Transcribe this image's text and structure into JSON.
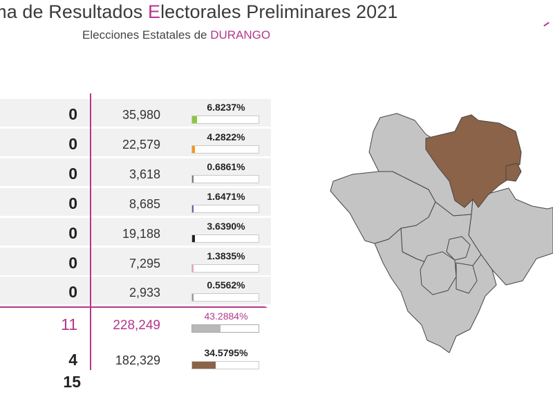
{
  "header": {
    "title_prefix": "ama de Resultados ",
    "title_accent": "E",
    "title_suffix": "lectorales Preliminares 2021",
    "subtitle_prefix": "Elecciones Estatales de ",
    "subtitle_state": "DURANGO"
  },
  "results": [
    {
      "seats": "0",
      "votes": "35,980",
      "pct": "6.8237%",
      "fill": 0.068,
      "color": "#8dc63f"
    },
    {
      "seats": "0",
      "votes": "22,579",
      "pct": "4.2822%",
      "fill": 0.043,
      "color": "#f7941d"
    },
    {
      "seats": "0",
      "votes": "3,618",
      "pct": "0.6861%",
      "fill": 0.007,
      "color": "#7a7a7a"
    },
    {
      "seats": "0",
      "votes": "8,685",
      "pct": "1.6471%",
      "fill": 0.016,
      "color": "#6b5ea8"
    },
    {
      "seats": "0",
      "votes": "19,188",
      "pct": "3.6390%",
      "fill": 0.036,
      "color": "#222222"
    },
    {
      "seats": "0",
      "votes": "7,295",
      "pct": "1.3835%",
      "fill": 0.014,
      "color": "#e8a0c4"
    },
    {
      "seats": "0",
      "votes": "2,933",
      "pct": "0.5562%",
      "fill": 0.006,
      "color": "#999999"
    },
    {
      "seats": "11",
      "votes": "228,249",
      "pct": "43.2884%",
      "fill": 0.433,
      "color": "#b8b8b8",
      "highlight": true
    },
    {
      "seats": "4",
      "votes": "182,329",
      "pct": "34.5795%",
      "fill": 0.346,
      "color": "#8b6348"
    }
  ],
  "total_seats": "15",
  "map": {
    "region_fill": "#c4c4c4",
    "highlight_fill": "#8b6348",
    "stroke": "#444444"
  }
}
